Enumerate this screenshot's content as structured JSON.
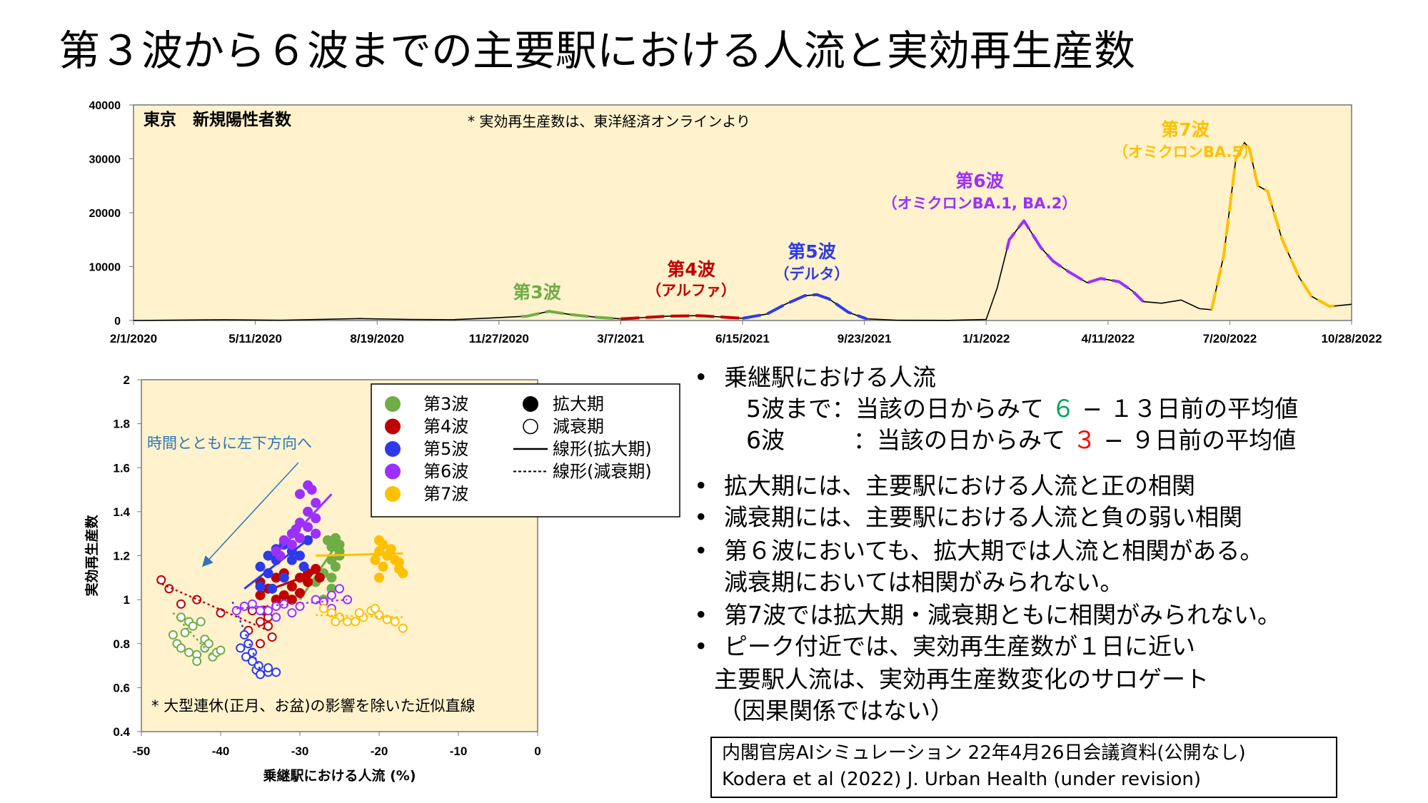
{
  "title": "第３波から６波までの主要駅における人流と実効再生産数",
  "colors": {
    "wave3": "#70AD47",
    "wave4": "#C00000",
    "wave5": "#2E3AE8",
    "wave6": "#9B30FF",
    "wave7": "#FFC000",
    "panel_bg": "#FFF2CC"
  },
  "chart_data": [
    {
      "type": "line",
      "panel_label": "東京　新規陽性者数",
      "note": "* 実効再生産数は、東洋経済オンラインより",
      "x_tick_labels": [
        "2/1/2020",
        "5/11/2020",
        "8/19/2020",
        "11/27/2020",
        "3/7/2021",
        "6/15/2021",
        "9/23/2021",
        "1/1/2022",
        "4/11/2022",
        "7/20/2022",
        "10/28/2022"
      ],
      "y_ticks": [
        0,
        10000,
        20000,
        30000,
        40000
      ],
      "ylim": [
        0,
        40000
      ],
      "xlim": [
        "2020-02-01",
        "2022-10-28"
      ],
      "grid": false,
      "series": {
        "x": [
          "2020-02-01",
          "2020-04-15",
          "2020-06-01",
          "2020-08-05",
          "2020-09-15",
          "2020-10-20",
          "2020-11-20",
          "2020-12-20",
          "2021-01-07",
          "2021-01-25",
          "2021-02-15",
          "2021-03-07",
          "2021-04-15",
          "2021-05-10",
          "2021-05-25",
          "2021-06-15",
          "2021-07-05",
          "2021-07-20",
          "2021-08-05",
          "2021-08-15",
          "2021-08-25",
          "2021-09-10",
          "2021-09-25",
          "2021-10-20",
          "2021-12-01",
          "2022-01-01",
          "2022-01-10",
          "2022-01-20",
          "2022-02-01",
          "2022-02-08",
          "2022-02-15",
          "2022-02-25",
          "2022-03-10",
          "2022-03-25",
          "2022-04-05",
          "2022-04-20",
          "2022-05-01",
          "2022-05-10",
          "2022-05-25",
          "2022-06-10",
          "2022-06-25",
          "2022-07-05",
          "2022-07-15",
          "2022-07-25",
          "2022-08-01",
          "2022-08-05",
          "2022-08-12",
          "2022-08-20",
          "2022-09-01",
          "2022-09-15",
          "2022-09-25",
          "2022-10-10",
          "2022-10-28"
        ],
        "y": [
          0,
          150,
          50,
          350,
          200,
          150,
          450,
          800,
          1700,
          1100,
          600,
          300,
          800,
          900,
          700,
          400,
          1200,
          3000,
          4600,
          4800,
          4000,
          1500,
          300,
          50,
          30,
          200,
          6000,
          15000,
          18500,
          16000,
          13500,
          11000,
          9000,
          7000,
          7800,
          7200,
          5500,
          3500,
          3200,
          3800,
          2200,
          2000,
          12000,
          30000,
          33000,
          32000,
          25000,
          24000,
          15000,
          8000,
          4500,
          2600,
          3000
        ]
      },
      "wave_highlights": [
        {
          "wave": "第3波",
          "color_key": "wave3",
          "start": "2020-12-15",
          "end": "2021-03-07"
        },
        {
          "wave": "第4波",
          "color_key": "wave4",
          "start": "2021-03-07",
          "end": "2021-06-15"
        },
        {
          "wave": "第5波",
          "color_key": "wave5",
          "start": "2021-06-15",
          "end": "2021-09-25"
        },
        {
          "wave": "第6波",
          "color_key": "wave6",
          "start": "2022-01-18",
          "end": "2022-05-10"
        },
        {
          "wave": "第7波",
          "color_key": "wave7",
          "start": "2022-07-05",
          "end": "2022-10-15"
        }
      ],
      "annotations": [
        {
          "title": "第3波",
          "sub": "",
          "color_key": "wave3"
        },
        {
          "title": "第4波",
          "sub": "（アルファ）",
          "color_key": "wave4"
        },
        {
          "title": "第5波",
          "sub": "（デルタ）",
          "color_key": "wave5"
        },
        {
          "title": "第6波",
          "sub": "（オミクロンBA.1, BA.2）",
          "color_key": "wave6"
        },
        {
          "title": "第7波",
          "sub": "（オミクロンBA.5）",
          "color_key": "wave7"
        }
      ]
    },
    {
      "type": "scatter",
      "xlabel": "乗継駅における人流 (%)",
      "ylabel": "実効再生産数",
      "xlim": [
        -50,
        0
      ],
      "ylim": [
        0.4,
        2
      ],
      "x_ticks": [
        -50,
        -40,
        -30,
        -20,
        -10,
        0
      ],
      "y_ticks": [
        0.4,
        0.6,
        0.8,
        1,
        1.2,
        1.4,
        1.6,
        1.8,
        2
      ],
      "grid": false,
      "legend_position": "top-right",
      "legend": {
        "waves": [
          "第3波",
          "第4波",
          "第5波",
          "第6波",
          "第7波"
        ],
        "phases": [
          "拡大期",
          "減衰期"
        ],
        "lines": [
          "線形(拡大期)",
          "線形(減衰期)"
        ]
      },
      "arrow_annotation": "時間とともに左下方向へ",
      "footnote": "* 大型連休(正月、お盆)の影響を除いた近似直線",
      "series": [
        {
          "name": "第3波",
          "color_key": "wave3",
          "expansion": [
            [
              -26,
              1.24
            ],
            [
              -25.5,
              1.28
            ],
            [
              -25,
              1.22
            ],
            [
              -26,
              1.18
            ],
            [
              -25.5,
              1.15
            ],
            [
              -27,
              1.12
            ],
            [
              -26,
              1.05
            ],
            [
              -27,
              1.0
            ],
            [
              -25,
              1.2
            ],
            [
              -26.5,
              1.27
            ],
            [
              -28,
              1.08
            ],
            [
              -25,
              1.25
            ],
            [
              -26,
              1.1
            ]
          ],
          "decline": [
            [
              -44,
              0.9
            ],
            [
              -45,
              0.92
            ],
            [
              -44.5,
              0.85
            ],
            [
              -45.5,
              0.8
            ],
            [
              -44,
              0.76
            ],
            [
              -43,
              0.75
            ],
            [
              -42,
              0.78
            ],
            [
              -41,
              0.74
            ],
            [
              -40.5,
              0.76
            ],
            [
              -42,
              0.82
            ],
            [
              -43.5,
              0.88
            ],
            [
              -46,
              0.84
            ],
            [
              -45,
              0.78
            ],
            [
              -41.5,
              0.8
            ],
            [
              -43,
              0.72
            ],
            [
              -40,
              0.77
            ],
            [
              -42.5,
              0.9
            ]
          ],
          "fit_expansion": [
            [
              -30,
              1.0
            ],
            [
              -25,
              1.27
            ]
          ],
          "fit_decline": [
            [
              -46,
              0.94
            ],
            [
              -41,
              0.74
            ]
          ]
        },
        {
          "name": "第4波",
          "color_key": "wave4",
          "expansion": [
            [
              -35,
              1.08
            ],
            [
              -34,
              1.05
            ],
            [
              -33,
              1.1
            ],
            [
              -32,
              1.12
            ],
            [
              -31,
              1.06
            ],
            [
              -30,
              1.1
            ],
            [
              -29,
              1.12
            ],
            [
              -28,
              1.14
            ],
            [
              -27.5,
              1.1
            ],
            [
              -33,
              1.0
            ],
            [
              -34.5,
              0.95
            ],
            [
              -32,
              1.02
            ],
            [
              -30,
              1.03
            ],
            [
              -29,
              1.08
            ],
            [
              -35,
              1.02
            ],
            [
              -31,
              1.0
            ]
          ],
          "decline": [
            [
              -47.5,
              1.09
            ],
            [
              -46.5,
              1.05
            ],
            [
              -45,
              0.98
            ],
            [
              -43,
              1.0
            ],
            [
              -40,
              0.94
            ],
            [
              -36,
              0.95
            ],
            [
              -35,
              0.9
            ],
            [
              -34,
              0.88
            ],
            [
              -33.5,
              0.83
            ],
            [
              -35,
              0.8
            ],
            [
              -34,
              0.92
            ],
            [
              -36.5,
              0.86
            ]
          ],
          "fit_expansion": [
            [
              -35,
              1.03
            ],
            [
              -27.5,
              1.13
            ]
          ],
          "fit_decline": [
            [
              -48,
              1.08
            ],
            [
              -34,
              0.86
            ]
          ]
        },
        {
          "name": "第5波",
          "color_key": "wave5",
          "expansion": [
            [
              -35,
              1.15
            ],
            [
              -34,
              1.2
            ],
            [
              -33,
              1.23
            ],
            [
              -32,
              1.25
            ],
            [
              -31,
              1.22
            ],
            [
              -30,
              1.28
            ],
            [
              -29,
              1.27
            ],
            [
              -28,
              1.3
            ],
            [
              -34,
              1.12
            ],
            [
              -33,
              1.18
            ],
            [
              -31,
              1.18
            ],
            [
              -30,
              1.2
            ],
            [
              -32,
              1.1
            ],
            [
              -29.5,
              1.15
            ],
            [
              -35,
              1.06
            ],
            [
              -33.5,
              1.05
            ]
          ],
          "decline": [
            [
              -37,
              0.84
            ],
            [
              -36.5,
              0.8
            ],
            [
              -36,
              0.76
            ],
            [
              -36,
              0.72
            ],
            [
              -35.5,
              0.68
            ],
            [
              -35,
              0.66
            ],
            [
              -34,
              0.67
            ],
            [
              -34,
              0.69
            ],
            [
              -33,
              0.67
            ],
            [
              -37.5,
              0.78
            ],
            [
              -36.8,
              0.74
            ],
            [
              -35.2,
              0.7
            ]
          ],
          "fit_expansion": [
            [
              -37,
              1.05
            ],
            [
              -28,
              1.3
            ]
          ],
          "fit_decline": [
            [
              -38.5,
              0.99
            ],
            [
              -35,
              0.68
            ]
          ]
        },
        {
          "name": "第6波",
          "color_key": "wave6",
          "expansion": [
            [
              -29,
              1.52
            ],
            [
              -28.5,
              1.5
            ],
            [
              -30,
              1.48
            ],
            [
              -28,
              1.44
            ],
            [
              -29,
              1.4
            ],
            [
              -28,
              1.37
            ],
            [
              -30,
              1.35
            ],
            [
              -29,
              1.33
            ],
            [
              -31,
              1.3
            ],
            [
              -30,
              1.28
            ],
            [
              -28,
              1.3
            ],
            [
              -32,
              1.27
            ],
            [
              -31,
              1.25
            ],
            [
              -33,
              1.22
            ],
            [
              -32.5,
              1.2
            ],
            [
              -30.5,
              1.32
            ]
          ],
          "decline": [
            [
              -38,
              0.95
            ],
            [
              -37,
              0.97
            ],
            [
              -36,
              0.98
            ],
            [
              -34,
              0.95
            ],
            [
              -33,
              0.97
            ],
            [
              -32,
              0.98
            ],
            [
              -31,
              0.94
            ],
            [
              -30,
              0.97
            ],
            [
              -28,
              1.0
            ],
            [
              -27,
              0.99
            ],
            [
              -26,
              1.02
            ],
            [
              -25,
              1.05
            ],
            [
              -24,
              1.0
            ],
            [
              -26,
              0.96
            ],
            [
              -33,
              0.92
            ],
            [
              -35,
              0.95
            ]
          ],
          "fit_expansion": [
            [
              -33,
              1.21
            ],
            [
              -26,
              1.48
            ]
          ],
          "fit_decline": [
            [
              -38,
              0.96
            ],
            [
              -24,
              1.0
            ]
          ]
        },
        {
          "name": "第7波",
          "color_key": "wave7",
          "expansion": [
            [
              -20,
              1.27
            ],
            [
              -19.5,
              1.25
            ],
            [
              -20,
              1.22
            ],
            [
              -19,
              1.2
            ],
            [
              -20.5,
              1.18
            ],
            [
              -18,
              1.18
            ],
            [
              -17.5,
              1.14
            ],
            [
              -17,
              1.12
            ],
            [
              -19.5,
              1.15
            ],
            [
              -20,
              1.1
            ],
            [
              -18.5,
              1.23
            ],
            [
              -17.5,
              1.17
            ]
          ],
          "decline": [
            [
              -27,
              0.96
            ],
            [
              -26,
              0.94
            ],
            [
              -25,
              0.92
            ],
            [
              -24,
              0.9
            ],
            [
              -23,
              0.9
            ],
            [
              -22,
              0.92
            ],
            [
              -21,
              0.95
            ],
            [
              -20,
              0.93
            ],
            [
              -19,
              0.91
            ],
            [
              -18,
              0.9
            ],
            [
              -17,
              0.87
            ],
            [
              -25.5,
              0.9
            ],
            [
              -22.5,
              0.94
            ],
            [
              -20.5,
              0.96
            ]
          ],
          "fit_expansion": [
            [
              -28,
              1.2
            ],
            [
              -17,
              1.21
            ]
          ],
          "fit_decline": [
            [
              -28,
              0.93
            ],
            [
              -17,
              0.92
            ]
          ]
        }
      ]
    }
  ],
  "bullets": {
    "b1": "乗継駅における人流",
    "b1_l1_pre": "5波まで：当該の日からみて ",
    "b1_l1_hl": "６",
    "b1_l1_post": " − １３日前の平均値",
    "b1_l2_a": "6波",
    "b1_l2_pre": "：当該の日からみて ",
    "b1_l2_hl": "３",
    "b1_l2_post": " − ９日前の平均値",
    "b2": "拡大期には、主要駅における人流と正の相関",
    "b3": "減衰期には、主要駅における人流と負の弱い相関",
    "b4a": "第６波においても、拡大期では人流と相関がある。",
    "b4b": "減衰期においては相関がみられない。",
    "b5": "第7波では拡大期・減衰期ともに相関がみられない。",
    "b6a": "ピーク付近では、実効再生産数が１日に近い",
    "b6b": "主要駅人流は、実効再生産数変化のサロゲート",
    "b6c": "（因果関係ではない）",
    "hl1_color": "#00A651",
    "hl2_color": "#FF0000"
  },
  "reference": {
    "line1": "内閣官房AIシミュレーション 22年4月26日会議資料(公開なし)",
    "line2": "Kodera et al (2022) J. Urban Health (under revision)"
  }
}
